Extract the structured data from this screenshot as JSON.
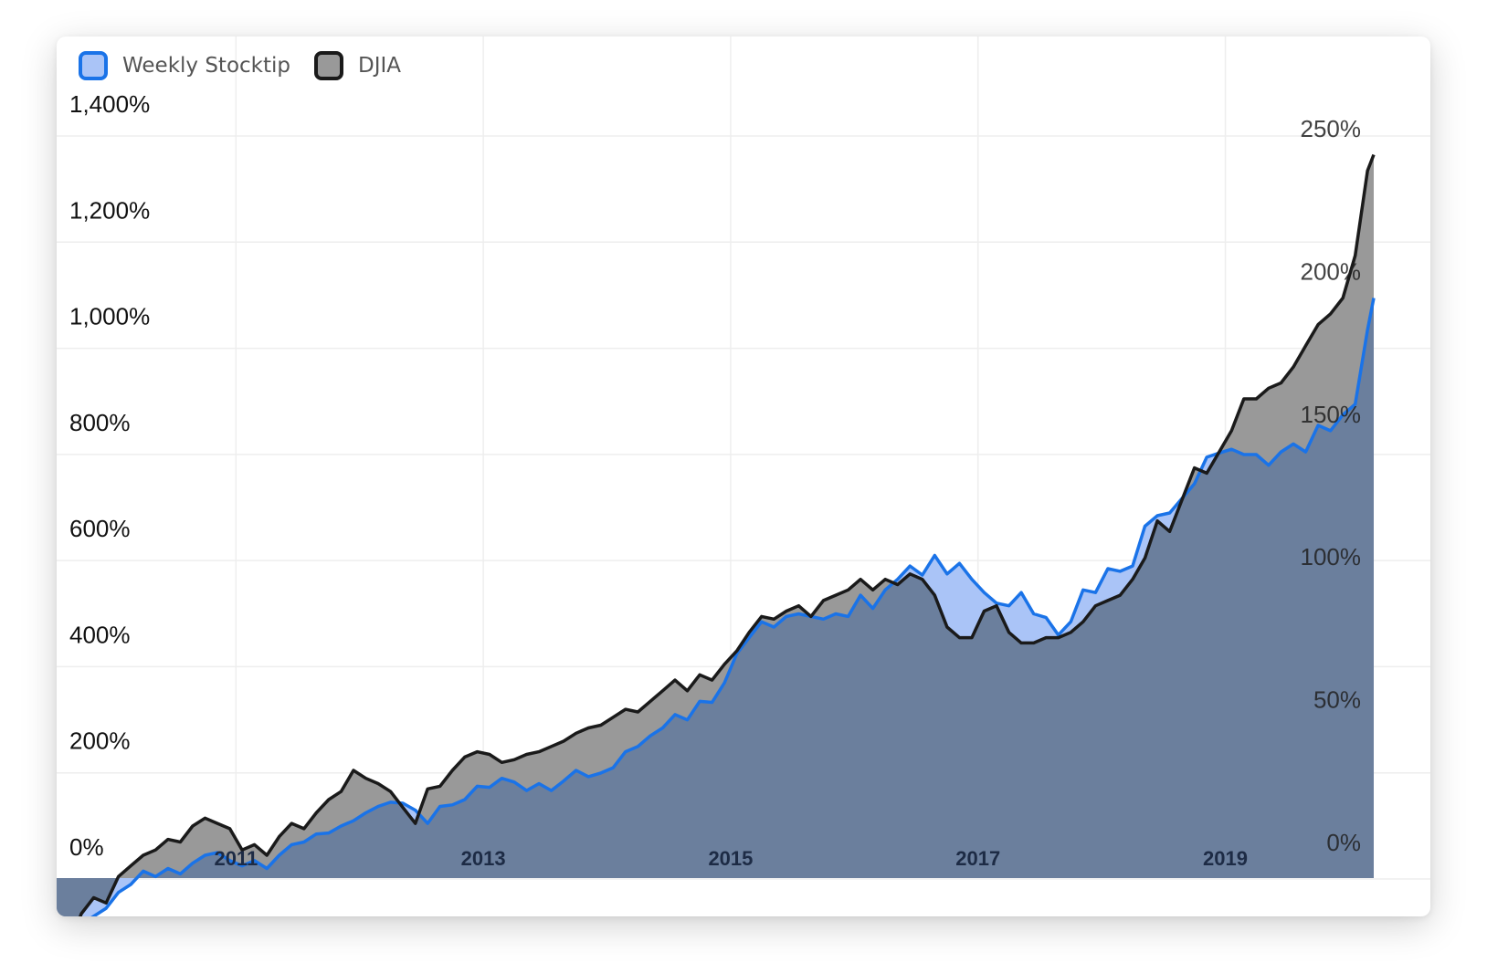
{
  "legend": {
    "series_a_label": "Weekly Stocktip",
    "series_b_label": "DJIA"
  },
  "colors": {
    "series_a_line": "#1a73e8",
    "series_a_fill": "#aac4f7",
    "series_b_line": "#1a1a1a",
    "series_b_fill": "#999999",
    "overlap_fill": "#6b7f9d",
    "grid": "#eeeeee"
  },
  "chart_data": {
    "type": "area",
    "xlim": [
      2009.55,
      2020.2
    ],
    "x_ticks": [
      {
        "value": 2011,
        "label": "2011"
      },
      {
        "value": 2013,
        "label": "2013"
      },
      {
        "value": 2015,
        "label": "2015"
      },
      {
        "value": 2017,
        "label": "2017"
      },
      {
        "value": 2019,
        "label": "2019"
      }
    ],
    "y_left": {
      "ylim": [
        -200,
        1450
      ],
      "ticks": [
        {
          "value": 0,
          "label": "0%"
        },
        {
          "value": 200,
          "label": "200%"
        },
        {
          "value": 400,
          "label": "400%"
        },
        {
          "value": 600,
          "label": "600%"
        },
        {
          "value": 800,
          "label": "800%"
        },
        {
          "value": 1000,
          "label": "1,000%"
        },
        {
          "value": 1200,
          "label": "1,200%"
        },
        {
          "value": 1400,
          "label": "1,400%"
        }
      ]
    },
    "y_right": {
      "ylim": [
        0,
        280
      ],
      "ticks": [
        {
          "value": 0,
          "label": "0%"
        },
        {
          "value": 50,
          "label": "50%"
        },
        {
          "value": 100,
          "label": "100%"
        },
        {
          "value": 150,
          "label": "150%"
        },
        {
          "value": 200,
          "label": "200%"
        },
        {
          "value": 250,
          "label": "250%"
        }
      ]
    },
    "series": [
      {
        "name": "Weekly Stocktip",
        "axis": "left",
        "points": [
          [
            2009.55,
            -160
          ],
          [
            2009.65,
            -170
          ],
          [
            2009.75,
            -130
          ],
          [
            2009.85,
            -115
          ],
          [
            2009.95,
            -100
          ],
          [
            2010.05,
            -70
          ],
          [
            2010.15,
            -55
          ],
          [
            2010.25,
            -30
          ],
          [
            2010.35,
            -40
          ],
          [
            2010.45,
            -25
          ],
          [
            2010.55,
            -35
          ],
          [
            2010.65,
            -15
          ],
          [
            2010.75,
            0
          ],
          [
            2010.85,
            5
          ],
          [
            2010.95,
            -10
          ],
          [
            2011.05,
            -20
          ],
          [
            2011.15,
            -10
          ],
          [
            2011.25,
            -25
          ],
          [
            2011.35,
            0
          ],
          [
            2011.45,
            20
          ],
          [
            2011.55,
            25
          ],
          [
            2011.65,
            40
          ],
          [
            2011.75,
            42
          ],
          [
            2011.85,
            55
          ],
          [
            2011.95,
            65
          ],
          [
            2012.05,
            80
          ],
          [
            2012.15,
            92
          ],
          [
            2012.25,
            100
          ],
          [
            2012.35,
            98
          ],
          [
            2012.45,
            85
          ],
          [
            2012.55,
            60
          ],
          [
            2012.65,
            92
          ],
          [
            2012.75,
            95
          ],
          [
            2012.85,
            105
          ],
          [
            2012.95,
            130
          ],
          [
            2013.05,
            128
          ],
          [
            2013.15,
            145
          ],
          [
            2013.25,
            138
          ],
          [
            2013.35,
            122
          ],
          [
            2013.45,
            135
          ],
          [
            2013.55,
            122
          ],
          [
            2013.65,
            140
          ],
          [
            2013.75,
            160
          ],
          [
            2013.85,
            148
          ],
          [
            2013.95,
            155
          ],
          [
            2014.05,
            165
          ],
          [
            2014.15,
            195
          ],
          [
            2014.25,
            205
          ],
          [
            2014.35,
            225
          ],
          [
            2014.45,
            240
          ],
          [
            2014.55,
            265
          ],
          [
            2014.65,
            255
          ],
          [
            2014.75,
            290
          ],
          [
            2014.85,
            288
          ],
          [
            2014.95,
            325
          ],
          [
            2015.05,
            380
          ],
          [
            2015.15,
            410
          ],
          [
            2015.25,
            440
          ],
          [
            2015.35,
            430
          ],
          [
            2015.45,
            450
          ],
          [
            2015.55,
            455
          ],
          [
            2015.65,
            450
          ],
          [
            2015.75,
            445
          ],
          [
            2015.85,
            455
          ],
          [
            2015.95,
            450
          ],
          [
            2016.05,
            490
          ],
          [
            2016.15,
            465
          ],
          [
            2016.25,
            500
          ],
          [
            2016.35,
            520
          ],
          [
            2016.45,
            545
          ],
          [
            2016.55,
            528
          ],
          [
            2016.65,
            565
          ],
          [
            2016.75,
            530
          ],
          [
            2016.85,
            550
          ],
          [
            2016.95,
            520
          ],
          [
            2017.05,
            495
          ],
          [
            2017.15,
            475
          ],
          [
            2017.25,
            470
          ],
          [
            2017.35,
            495
          ],
          [
            2017.45,
            455
          ],
          [
            2017.55,
            448
          ],
          [
            2017.65,
            415
          ],
          [
            2017.75,
            440
          ],
          [
            2017.85,
            500
          ],
          [
            2017.95,
            495
          ],
          [
            2018.05,
            540
          ],
          [
            2018.15,
            535
          ],
          [
            2018.25,
            545
          ],
          [
            2018.35,
            620
          ],
          [
            2018.45,
            640
          ],
          [
            2018.55,
            645
          ],
          [
            2018.75,
            700
          ],
          [
            2018.85,
            750
          ],
          [
            2018.95,
            758
          ],
          [
            2019.05,
            765
          ],
          [
            2019.15,
            755
          ],
          [
            2019.25,
            755
          ],
          [
            2019.35,
            735
          ],
          [
            2019.45,
            760
          ],
          [
            2019.55,
            775
          ],
          [
            2019.65,
            760
          ],
          [
            2019.75,
            810
          ],
          [
            2019.85,
            800
          ],
          [
            2019.95,
            830
          ],
          [
            2020.05,
            850
          ],
          [
            2020.15,
            990
          ],
          [
            2020.2,
            1050
          ]
        ]
      },
      {
        "name": "DJIA",
        "axis": "left",
        "points": [
          [
            2009.55,
            -120
          ],
          [
            2009.65,
            -170
          ],
          [
            2009.75,
            -110
          ],
          [
            2009.85,
            -80
          ],
          [
            2009.95,
            -90
          ],
          [
            2010.05,
            -40
          ],
          [
            2010.15,
            -20
          ],
          [
            2010.25,
            0
          ],
          [
            2010.35,
            10
          ],
          [
            2010.45,
            30
          ],
          [
            2010.55,
            25
          ],
          [
            2010.65,
            55
          ],
          [
            2010.75,
            70
          ],
          [
            2010.85,
            60
          ],
          [
            2010.95,
            50
          ],
          [
            2011.05,
            10
          ],
          [
            2011.15,
            20
          ],
          [
            2011.25,
            0
          ],
          [
            2011.35,
            35
          ],
          [
            2011.45,
            60
          ],
          [
            2011.55,
            50
          ],
          [
            2011.65,
            80
          ],
          [
            2011.75,
            105
          ],
          [
            2011.85,
            120
          ],
          [
            2011.95,
            160
          ],
          [
            2012.05,
            145
          ],
          [
            2012.15,
            135
          ],
          [
            2012.25,
            120
          ],
          [
            2012.35,
            90
          ],
          [
            2012.45,
            60
          ],
          [
            2012.55,
            125
          ],
          [
            2012.65,
            130
          ],
          [
            2012.75,
            160
          ],
          [
            2012.85,
            185
          ],
          [
            2012.95,
            195
          ],
          [
            2013.05,
            190
          ],
          [
            2013.15,
            175
          ],
          [
            2013.25,
            180
          ],
          [
            2013.35,
            190
          ],
          [
            2013.45,
            195
          ],
          [
            2013.55,
            205
          ],
          [
            2013.65,
            215
          ],
          [
            2013.75,
            230
          ],
          [
            2013.85,
            240
          ],
          [
            2013.95,
            245
          ],
          [
            2014.05,
            260
          ],
          [
            2014.15,
            275
          ],
          [
            2014.25,
            270
          ],
          [
            2014.35,
            290
          ],
          [
            2014.45,
            310
          ],
          [
            2014.55,
            330
          ],
          [
            2014.65,
            310
          ],
          [
            2014.75,
            340
          ],
          [
            2014.85,
            330
          ],
          [
            2014.95,
            360
          ],
          [
            2015.05,
            385
          ],
          [
            2015.15,
            420
          ],
          [
            2015.25,
            450
          ],
          [
            2015.35,
            445
          ],
          [
            2015.45,
            460
          ],
          [
            2015.55,
            470
          ],
          [
            2015.65,
            450
          ],
          [
            2015.75,
            480
          ],
          [
            2015.85,
            490
          ],
          [
            2015.95,
            500
          ],
          [
            2016.05,
            520
          ],
          [
            2016.15,
            500
          ],
          [
            2016.25,
            520
          ],
          [
            2016.35,
            510
          ],
          [
            2016.45,
            530
          ],
          [
            2016.55,
            520
          ],
          [
            2016.65,
            490
          ],
          [
            2016.75,
            430
          ],
          [
            2016.85,
            410
          ],
          [
            2016.95,
            410
          ],
          [
            2017.05,
            460
          ],
          [
            2017.15,
            470
          ],
          [
            2017.25,
            420
          ],
          [
            2017.35,
            400
          ],
          [
            2017.45,
            400
          ],
          [
            2017.55,
            410
          ],
          [
            2017.65,
            410
          ],
          [
            2017.75,
            420
          ],
          [
            2017.85,
            440
          ],
          [
            2017.95,
            470
          ],
          [
            2018.05,
            480
          ],
          [
            2018.15,
            490
          ],
          [
            2018.25,
            520
          ],
          [
            2018.35,
            560
          ],
          [
            2018.45,
            630
          ],
          [
            2018.55,
            610
          ],
          [
            2018.75,
            730
          ],
          [
            2018.85,
            720
          ],
          [
            2018.95,
            760
          ],
          [
            2019.05,
            800
          ],
          [
            2019.15,
            860
          ],
          [
            2019.25,
            860
          ],
          [
            2019.35,
            880
          ],
          [
            2019.45,
            890
          ],
          [
            2019.55,
            920
          ],
          [
            2019.65,
            960
          ],
          [
            2019.75,
            1000
          ],
          [
            2019.85,
            1020
          ],
          [
            2019.95,
            1050
          ],
          [
            2020.05,
            1130
          ],
          [
            2020.15,
            1290
          ],
          [
            2020.2,
            1320
          ]
        ]
      }
    ]
  }
}
